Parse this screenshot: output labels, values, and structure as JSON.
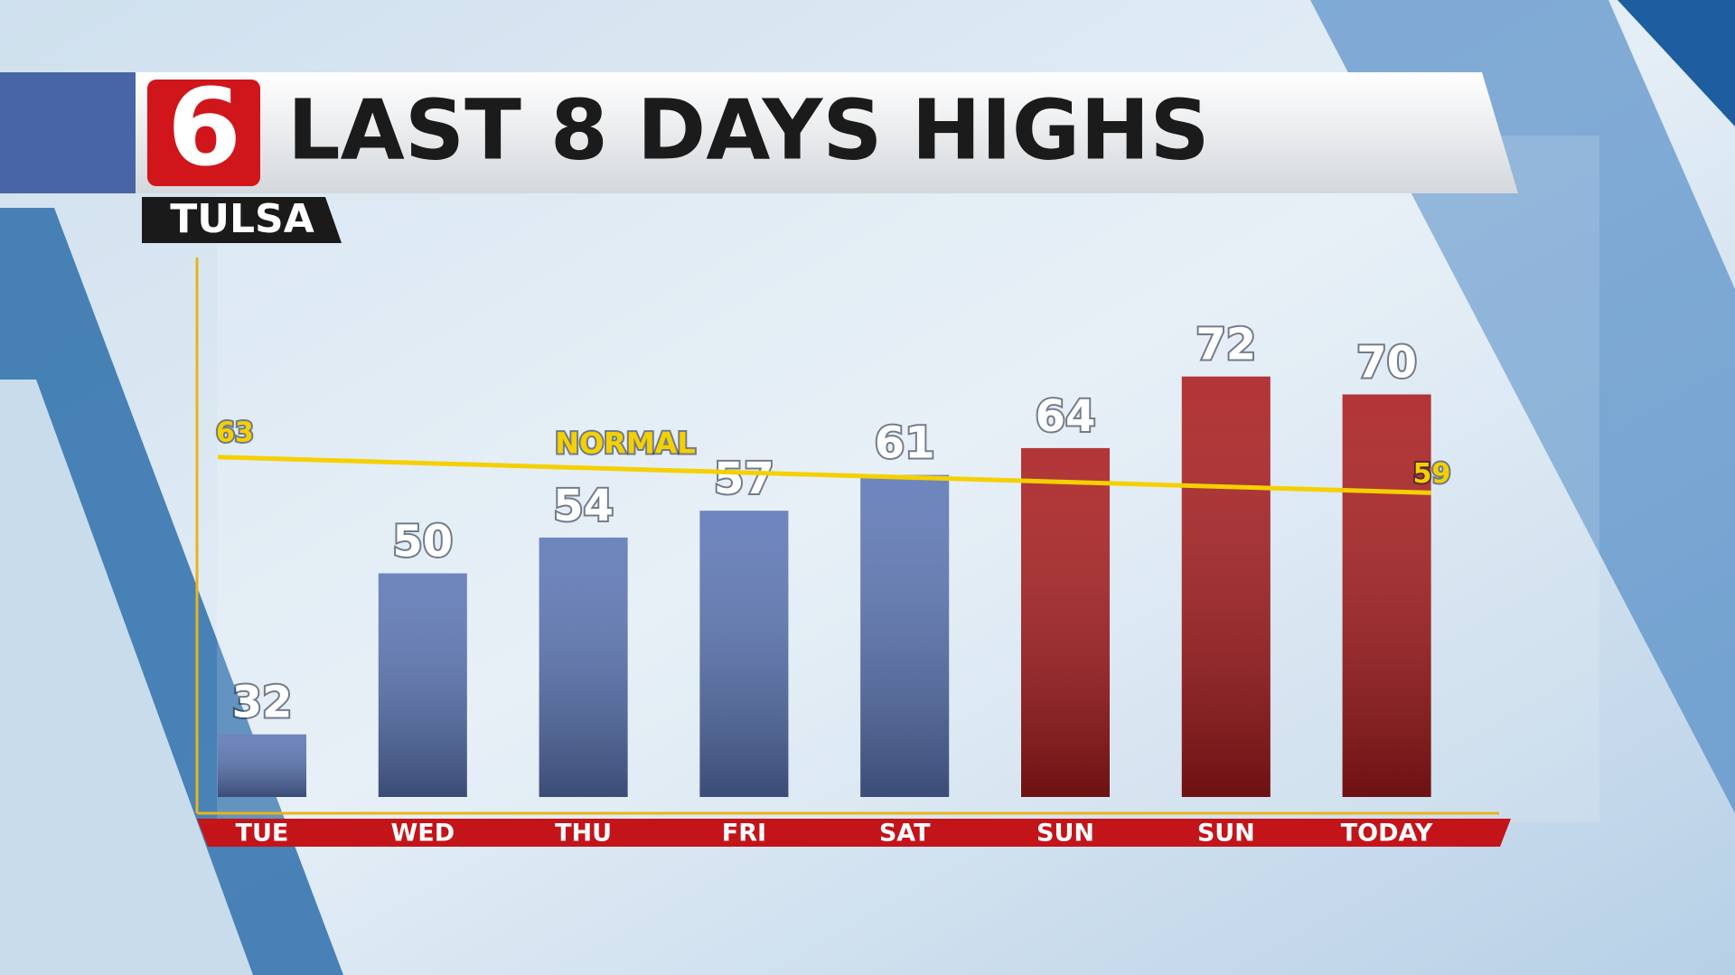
{
  "station": {
    "logo": "6",
    "city": "TULSA"
  },
  "chart_data": {
    "type": "bar",
    "title": "LAST 8 DAYS HIGHS",
    "categories": [
      "TUE",
      "WED",
      "THU",
      "FRI",
      "SAT",
      "SUN",
      "SUN",
      "TODAY"
    ],
    "values": [
      32,
      50,
      54,
      57,
      61,
      64,
      72,
      70
    ],
    "colors": [
      "#5a75b5",
      "#5a75b5",
      "#5a75b5",
      "#5a75b5",
      "#5a75b5",
      "#a81a1c",
      "#a81a1c",
      "#a81a1c"
    ],
    "ylim": [
      25,
      85
    ],
    "normal": {
      "name": "NORMAL",
      "values": [
        63,
        59
      ],
      "color": "#f5d000"
    }
  }
}
